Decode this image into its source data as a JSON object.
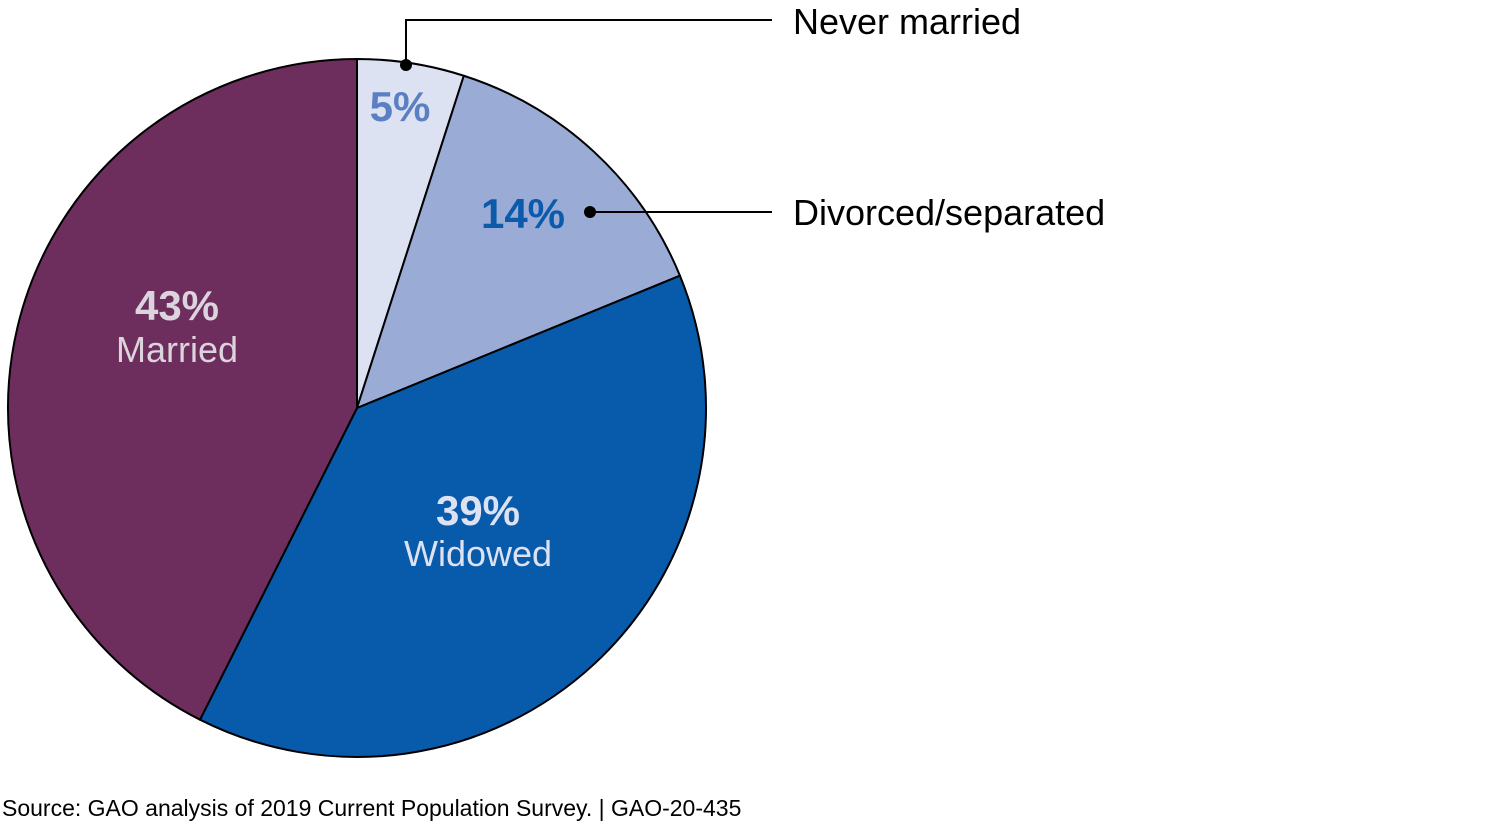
{
  "chart_data": {
    "type": "pie",
    "slices": [
      {
        "label": "Never married",
        "value": 5,
        "value_label": "5%",
        "color": "#dde2f2",
        "label_color": "#5b7fc3"
      },
      {
        "label": "Divorced/separated",
        "value": 14,
        "value_label": "14%",
        "color": "#9aabd6",
        "label_color": "#0b5aab"
      },
      {
        "label": "Widowed",
        "value": 39,
        "value_label": "39%",
        "color": "#085aab",
        "label_color": "#dde2f2"
      },
      {
        "label": "Married",
        "value": 43,
        "value_label": "43%",
        "color": "#6d2e5e",
        "label_color": "#dcd4dd"
      }
    ],
    "outline_color": "#000000"
  },
  "source_note": "Source: GAO analysis of 2019 Current Population Survey.  |  GAO-20-435"
}
